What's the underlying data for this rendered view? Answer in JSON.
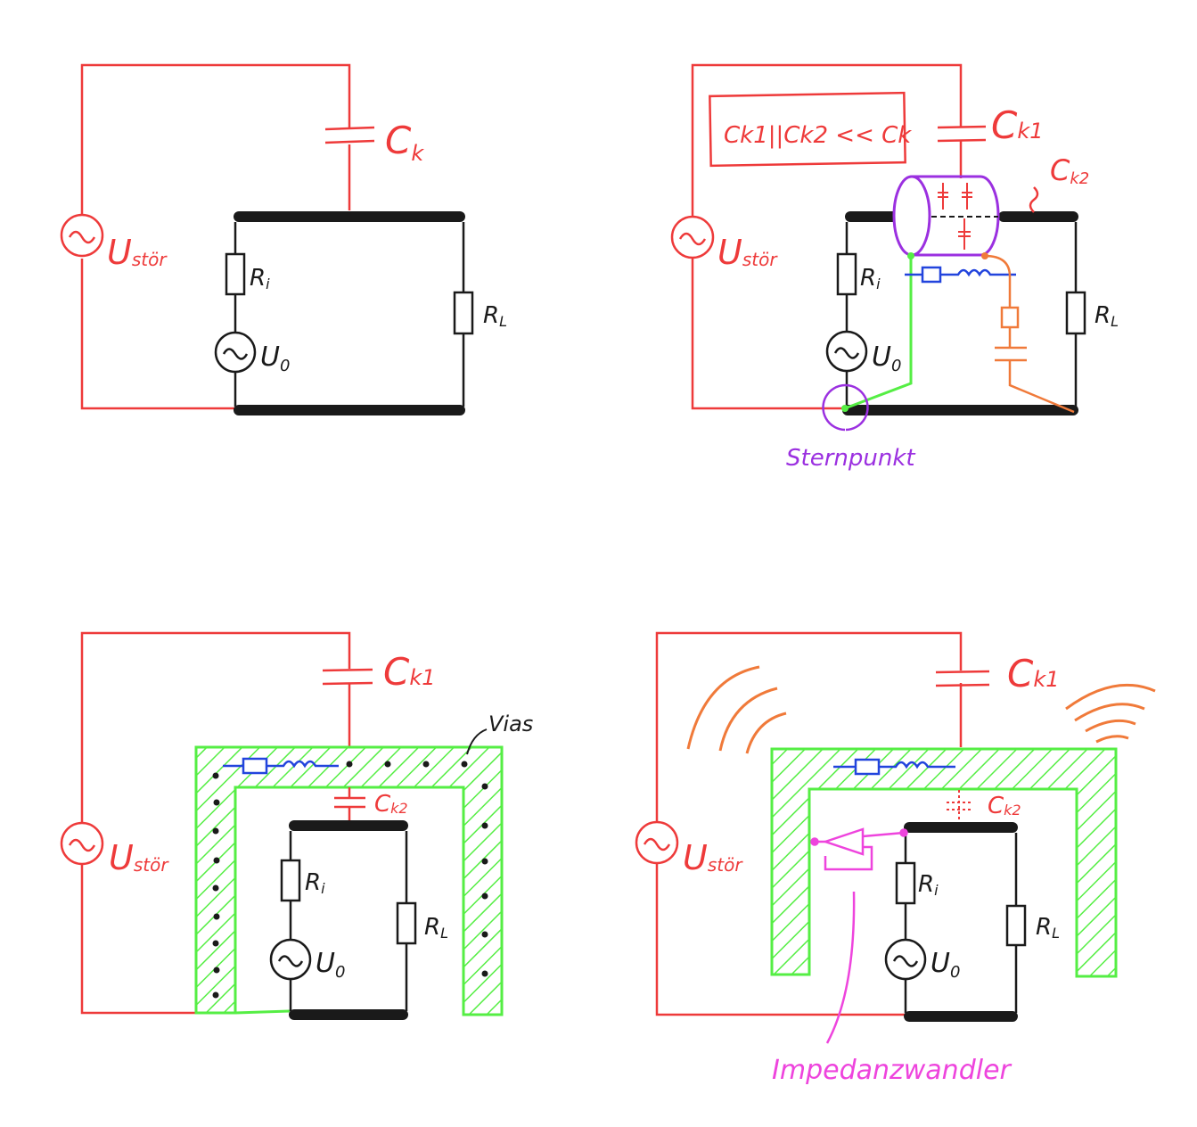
{
  "colors": {
    "red": "#ee3a3a",
    "black": "#1a1a1a",
    "green": "#55ee44",
    "blue": "#2244dd",
    "orange": "#f07a3a",
    "purple": "#9b30e0",
    "pink": "#ee44dd"
  },
  "panel1": {
    "ustor_label": "U",
    "ustor_sub": "stör",
    "ck_label": "C",
    "ck_sub": "k",
    "ri_label": "R",
    "ri_sub": "i",
    "u0_label": "U",
    "u0_sub": "0",
    "rl_label": "R",
    "rl_sub": "L"
  },
  "panel2": {
    "ustor_label": "U",
    "ustor_sub": "stör",
    "ck1_label": "C",
    "ck1_sub": "k1",
    "ck2_label": "C",
    "ck2_sub": "k2",
    "box_text": "Ck1||Ck2 << Ck",
    "ri_label": "R",
    "ri_sub": "i",
    "u0_label": "U",
    "u0_sub": "0",
    "rl_label": "R",
    "rl_sub": "L",
    "sternpunkt": "Sternpunkt"
  },
  "panel3": {
    "ustor_label": "U",
    "ustor_sub": "stör",
    "ck1_label": "C",
    "ck1_sub": "k1",
    "ck2_label": "C",
    "ck2_sub": "k2",
    "vias": "Vias",
    "ri_label": "R",
    "ri_sub": "i",
    "u0_label": "U",
    "u0_sub": "0",
    "rl_label": "R",
    "rl_sub": "L"
  },
  "panel4": {
    "ustor_label": "U",
    "ustor_sub": "stör",
    "ck1_label": "C",
    "ck1_sub": "k1",
    "ck2_label": "C",
    "ck2_sub": "k2",
    "ri_label": "R",
    "ri_sub": "i",
    "u0_label": "U",
    "u0_sub": "0",
    "rl_label": "R",
    "rl_sub": "L",
    "impedanzwandler": "Impedanzwandler"
  }
}
